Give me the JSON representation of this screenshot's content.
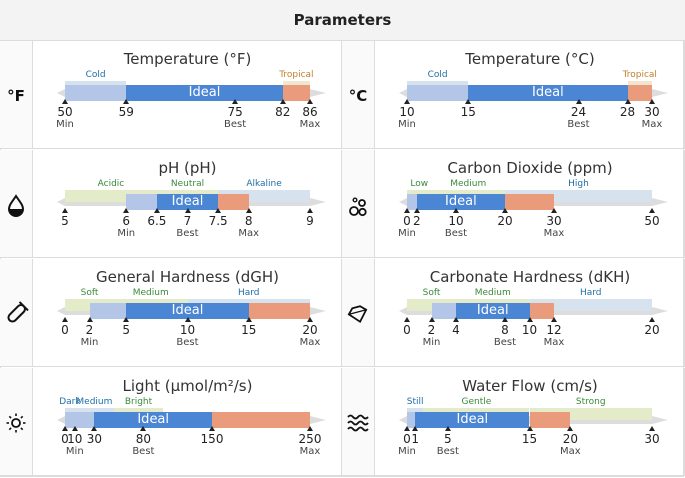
{
  "header": {
    "title": "Parameters"
  },
  "colors": {
    "track": "#dddddd",
    "ideal": "#4a86d3",
    "okay": "#b3c6e7",
    "warn": "#e99b7c",
    "zoneLabelBlue": "#1e6ea5",
    "zoneLabelGreen": "#3a8a3a",
    "zoneLabelOrange": "#c17f2c"
  },
  "params": [
    {
      "title": "Temperature (°F)",
      "icon": "fahrenheit-icon",
      "icon_text": "°F",
      "min": 50,
      "max": 86,
      "lo": 50,
      "hi": 86,
      "bars": [
        [
          50,
          59,
          "okay"
        ],
        [
          59,
          82,
          "ideal"
        ],
        [
          82,
          86,
          "warn"
        ]
      ],
      "zones": [
        {
          "label": "Cold",
          "from": 50,
          "to": 59,
          "color": "blue"
        },
        {
          "label": "Tropical",
          "from": 82,
          "to": 86,
          "color": "orange"
        }
      ],
      "ticks": [
        {
          "v": 50,
          "t": "50",
          "s": "Min"
        },
        {
          "v": 59,
          "t": "59",
          "s": ""
        },
        {
          "v": 75,
          "t": "75",
          "s": "Best"
        },
        {
          "v": 82,
          "t": "82",
          "s": ""
        },
        {
          "v": 86,
          "t": "86",
          "s": "Max"
        }
      ]
    },
    {
      "title": "Temperature (°C)",
      "icon": "celsius-icon",
      "icon_text": "°C",
      "min": 10,
      "max": 30,
      "lo": 10,
      "hi": 30,
      "bars": [
        [
          10,
          15,
          "okay"
        ],
        [
          15,
          28,
          "ideal"
        ],
        [
          28,
          30,
          "warn"
        ]
      ],
      "zones": [
        {
          "label": "Cold",
          "from": 10,
          "to": 15,
          "color": "blue"
        },
        {
          "label": "Tropical",
          "from": 28,
          "to": 30,
          "color": "orange"
        }
      ],
      "ticks": [
        {
          "v": 10,
          "t": "10",
          "s": "Min"
        },
        {
          "v": 15,
          "t": "15",
          "s": ""
        },
        {
          "v": 24,
          "t": "24",
          "s": "Best"
        },
        {
          "v": 28,
          "t": "28",
          "s": ""
        },
        {
          "v": 30,
          "t": "30",
          "s": "Max"
        }
      ]
    },
    {
      "title": "pH (pH)",
      "icon": "water-drop-icon",
      "min": 5,
      "max": 9,
      "lo": 5,
      "hi": 9,
      "bars": [
        [
          6,
          6.5,
          "okay"
        ],
        [
          6.5,
          7.5,
          "ideal"
        ],
        [
          7.5,
          8,
          "warn"
        ]
      ],
      "zones": [
        {
          "label": "Acidic",
          "from": 5,
          "to": 6.5,
          "color": "green"
        },
        {
          "label": "Neutral",
          "from": 6.5,
          "to": 7.5,
          "color": "green"
        },
        {
          "label": "Alkaline",
          "from": 7.5,
          "to": 9,
          "color": "blue"
        }
      ],
      "ticks": [
        {
          "v": 5,
          "t": "5",
          "s": ""
        },
        {
          "v": 6,
          "t": "6",
          "s": "Min"
        },
        {
          "v": 6.5,
          "t": "6.5",
          "s": ""
        },
        {
          "v": 7,
          "t": "7",
          "s": "Best"
        },
        {
          "v": 7.5,
          "t": "7.5",
          "s": ""
        },
        {
          "v": 8,
          "t": "8",
          "s": "Max"
        },
        {
          "v": 9,
          "t": "9",
          "s": ""
        }
      ]
    },
    {
      "title": "Carbon Dioxide (ppm)",
      "icon": "bubbles-icon",
      "min": 0,
      "max": 50,
      "lo": 0,
      "hi": 50,
      "bars": [
        [
          0,
          2,
          "okay"
        ],
        [
          2,
          20,
          "ideal"
        ],
        [
          20,
          30,
          "warn"
        ]
      ],
      "zones": [
        {
          "label": "Low",
          "from": 0,
          "to": 5,
          "color": "green"
        },
        {
          "label": "Medium",
          "from": 5,
          "to": 20,
          "color": "green"
        },
        {
          "label": "High",
          "from": 20,
          "to": 50,
          "color": "blue"
        }
      ],
      "ticks": [
        {
          "v": 0,
          "t": "0",
          "s": "Min"
        },
        {
          "v": 2,
          "t": "2",
          "s": ""
        },
        {
          "v": 10,
          "t": "10",
          "s": "Best"
        },
        {
          "v": 20,
          "t": "20",
          "s": ""
        },
        {
          "v": 30,
          "t": "30",
          "s": "Max"
        },
        {
          "v": 50,
          "t": "50",
          "s": ""
        }
      ]
    },
    {
      "title": "General Hardness (dGH)",
      "icon": "test-tube-icon",
      "min": 0,
      "max": 20,
      "lo": 0,
      "hi": 20,
      "bars": [
        [
          2,
          5,
          "okay"
        ],
        [
          5,
          15,
          "ideal"
        ],
        [
          15,
          20,
          "warn"
        ]
      ],
      "zones": [
        {
          "label": "Soft",
          "from": 0,
          "to": 4,
          "color": "green"
        },
        {
          "label": "Medium",
          "from": 4,
          "to": 10,
          "color": "green"
        },
        {
          "label": "Hard",
          "from": 10,
          "to": 20,
          "color": "blue"
        }
      ],
      "ticks": [
        {
          "v": 0,
          "t": "0",
          "s": ""
        },
        {
          "v": 2,
          "t": "2",
          "s": "Min"
        },
        {
          "v": 5,
          "t": "5",
          "s": ""
        },
        {
          "v": 10,
          "t": "10",
          "s": "Best"
        },
        {
          "v": 15,
          "t": "15",
          "s": ""
        },
        {
          "v": 20,
          "t": "20",
          "s": "Max"
        }
      ]
    },
    {
      "title": "Carbonate Hardness (dKH)",
      "icon": "diamond-icon",
      "min": 0,
      "max": 20,
      "lo": 0,
      "hi": 20,
      "bars": [
        [
          2,
          4,
          "okay"
        ],
        [
          4,
          10,
          "ideal"
        ],
        [
          10,
          12,
          "warn"
        ]
      ],
      "zones": [
        {
          "label": "Soft",
          "from": 0,
          "to": 4,
          "color": "green"
        },
        {
          "label": "Medium",
          "from": 4,
          "to": 10,
          "color": "green"
        },
        {
          "label": "Hard",
          "from": 10,
          "to": 20,
          "color": "blue"
        }
      ],
      "ticks": [
        {
          "v": 0,
          "t": "0",
          "s": ""
        },
        {
          "v": 2,
          "t": "2",
          "s": "Min"
        },
        {
          "v": 4,
          "t": "4",
          "s": ""
        },
        {
          "v": 8,
          "t": "8",
          "s": "Best"
        },
        {
          "v": 10,
          "t": "10",
          "s": ""
        },
        {
          "v": 12,
          "t": "12",
          "s": "Max"
        },
        {
          "v": 20,
          "t": "20",
          "s": ""
        }
      ]
    },
    {
      "title": "Light (µmol/m²/s)",
      "icon": "sun-icon",
      "min": 0,
      "max": 250,
      "lo": 0,
      "hi": 250,
      "bars": [
        [
          0,
          10,
          "okay"
        ],
        [
          10,
          30,
          "okay"
        ],
        [
          30,
          150,
          "ideal"
        ],
        [
          150,
          250,
          "warn"
        ]
      ],
      "zones": [
        {
          "label": "Dark",
          "from": 0,
          "to": 10,
          "color": "blue"
        },
        {
          "label": "Medium",
          "from": 10,
          "to": 50,
          "color": "blue"
        },
        {
          "label": "Bright",
          "from": 50,
          "to": 100,
          "color": "green"
        }
      ],
      "ticks": [
        {
          "v": 0,
          "t": "0",
          "s": ""
        },
        {
          "v": 10,
          "t": "10",
          "s": "Min"
        },
        {
          "v": 30,
          "t": "30",
          "s": ""
        },
        {
          "v": 80,
          "t": "80",
          "s": "Best"
        },
        {
          "v": 150,
          "t": "150",
          "s": ""
        },
        {
          "v": 250,
          "t": "250",
          "s": "Max"
        }
      ]
    },
    {
      "title": "Water Flow (cm/s)",
      "icon": "waves-icon",
      "min": 0,
      "max": 30,
      "lo": 0,
      "hi": 30,
      "bars": [
        [
          0,
          1,
          "okay"
        ],
        [
          1,
          15,
          "ideal"
        ],
        [
          15,
          20,
          "warn"
        ]
      ],
      "zones": [
        {
          "label": "Still",
          "from": 0,
          "to": 2,
          "color": "blue"
        },
        {
          "label": "Gentle",
          "from": 2,
          "to": 15,
          "color": "green"
        },
        {
          "label": "Strong",
          "from": 15,
          "to": 30,
          "color": "green"
        }
      ],
      "ticks": [
        {
          "v": 0,
          "t": "0",
          "s": "Min"
        },
        {
          "v": 1,
          "t": "1",
          "s": ""
        },
        {
          "v": 5,
          "t": "5",
          "s": "Best"
        },
        {
          "v": 15,
          "t": "15",
          "s": ""
        },
        {
          "v": 20,
          "t": "20",
          "s": "Max"
        },
        {
          "v": 30,
          "t": "30",
          "s": ""
        }
      ]
    }
  ],
  "ideal_label": "Ideal"
}
